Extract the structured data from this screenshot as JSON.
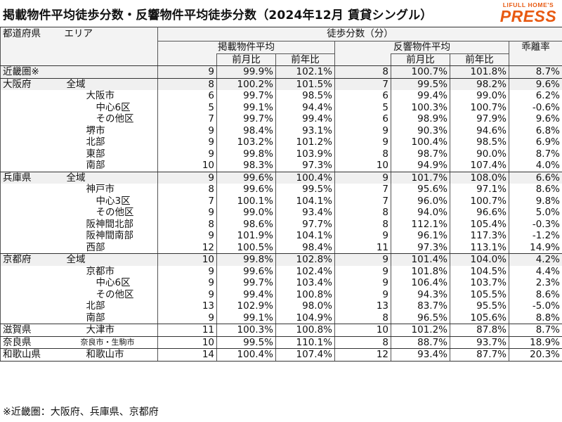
{
  "title": "掲載物件平均徒歩分数・反響物件平均徒歩分数（2024年12月 賃貸シングル）",
  "logo": {
    "top": "LIFULL HOME'S",
    "main": "PRESS"
  },
  "headers": {
    "region": "都道府県",
    "area": "エリア",
    "walk_minutes": "徒歩分数（分）",
    "listed_avg": "掲載物件平均",
    "response_avg": "反響物件平均",
    "mom": "前月比",
    "yoy": "前年比",
    "divergence": "乖離率"
  },
  "rows": [
    {
      "region": "近畿圏※",
      "area": "",
      "listed": "9",
      "listed_mom": "99.9%",
      "listed_yoy": "102.1%",
      "resp": "8",
      "resp_mom": "100.7%",
      "resp_yoy": "101.8%",
      "div": "8.7%"
    },
    {
      "region": "大阪府",
      "area": "全域",
      "listed": "8",
      "listed_mom": "100.2%",
      "listed_yoy": "101.5%",
      "resp": "7",
      "resp_mom": "99.5%",
      "resp_yoy": "98.2%",
      "div": "9.6%"
    },
    {
      "region": "",
      "area": "大阪市",
      "listed": "6",
      "listed_mom": "99.7%",
      "listed_yoy": "98.5%",
      "resp": "6",
      "resp_mom": "99.4%",
      "resp_yoy": "99.0%",
      "div": "6.2%"
    },
    {
      "region": "",
      "area": "中心6区",
      "listed": "5",
      "listed_mom": "99.1%",
      "listed_yoy": "94.4%",
      "resp": "5",
      "resp_mom": "100.3%",
      "resp_yoy": "100.7%",
      "div": "-0.6%"
    },
    {
      "region": "",
      "area": "その他区",
      "listed": "7",
      "listed_mom": "99.7%",
      "listed_yoy": "99.4%",
      "resp": "6",
      "resp_mom": "98.9%",
      "resp_yoy": "97.9%",
      "div": "9.6%"
    },
    {
      "region": "",
      "area": "堺市",
      "listed": "9",
      "listed_mom": "98.4%",
      "listed_yoy": "93.1%",
      "resp": "9",
      "resp_mom": "90.3%",
      "resp_yoy": "94.6%",
      "div": "6.8%"
    },
    {
      "region": "",
      "area": "北部",
      "listed": "9",
      "listed_mom": "103.2%",
      "listed_yoy": "101.2%",
      "resp": "9",
      "resp_mom": "100.4%",
      "resp_yoy": "98.5%",
      "div": "6.9%"
    },
    {
      "region": "",
      "area": "東部",
      "listed": "9",
      "listed_mom": "99.8%",
      "listed_yoy": "103.9%",
      "resp": "8",
      "resp_mom": "98.7%",
      "resp_yoy": "90.0%",
      "div": "8.7%"
    },
    {
      "region": "",
      "area": "南部",
      "listed": "10",
      "listed_mom": "98.3%",
      "listed_yoy": "97.3%",
      "resp": "10",
      "resp_mom": "94.9%",
      "resp_yoy": "107.4%",
      "div": "4.0%"
    },
    {
      "region": "兵庫県",
      "area": "全域",
      "listed": "9",
      "listed_mom": "99.6%",
      "listed_yoy": "100.4%",
      "resp": "9",
      "resp_mom": "101.7%",
      "resp_yoy": "108.0%",
      "div": "6.6%"
    },
    {
      "region": "",
      "area": "神戸市",
      "listed": "8",
      "listed_mom": "99.6%",
      "listed_yoy": "99.5%",
      "resp": "7",
      "resp_mom": "95.6%",
      "resp_yoy": "97.1%",
      "div": "8.6%"
    },
    {
      "region": "",
      "area": "中心3区",
      "listed": "7",
      "listed_mom": "100.1%",
      "listed_yoy": "104.1%",
      "resp": "7",
      "resp_mom": "96.0%",
      "resp_yoy": "100.7%",
      "div": "9.8%"
    },
    {
      "region": "",
      "area": "その他区",
      "listed": "9",
      "listed_mom": "99.0%",
      "listed_yoy": "93.4%",
      "resp": "8",
      "resp_mom": "94.0%",
      "resp_yoy": "96.6%",
      "div": "5.0%"
    },
    {
      "region": "",
      "area": "阪神間北部",
      "listed": "8",
      "listed_mom": "98.6%",
      "listed_yoy": "97.7%",
      "resp": "8",
      "resp_mom": "112.1%",
      "resp_yoy": "105.4%",
      "div": "-0.3%"
    },
    {
      "region": "",
      "area": "阪神間南部",
      "listed": "9",
      "listed_mom": "101.9%",
      "listed_yoy": "104.1%",
      "resp": "9",
      "resp_mom": "96.1%",
      "resp_yoy": "117.3%",
      "div": "-1.2%"
    },
    {
      "region": "",
      "area": "西部",
      "listed": "12",
      "listed_mom": "100.5%",
      "listed_yoy": "98.4%",
      "resp": "11",
      "resp_mom": "97.3%",
      "resp_yoy": "113.1%",
      "div": "14.9%"
    },
    {
      "region": "京都府",
      "area": "全域",
      "listed": "10",
      "listed_mom": "99.8%",
      "listed_yoy": "102.8%",
      "resp": "9",
      "resp_mom": "101.4%",
      "resp_yoy": "104.0%",
      "div": "4.2%"
    },
    {
      "region": "",
      "area": "京都市",
      "listed": "9",
      "listed_mom": "99.6%",
      "listed_yoy": "102.4%",
      "resp": "9",
      "resp_mom": "101.8%",
      "resp_yoy": "104.5%",
      "div": "4.4%"
    },
    {
      "region": "",
      "area": "中心6区",
      "listed": "9",
      "listed_mom": "99.7%",
      "listed_yoy": "103.4%",
      "resp": "9",
      "resp_mom": "106.4%",
      "resp_yoy": "103.7%",
      "div": "2.3%"
    },
    {
      "region": "",
      "area": "その他区",
      "listed": "9",
      "listed_mom": "99.4%",
      "listed_yoy": "100.8%",
      "resp": "9",
      "resp_mom": "94.3%",
      "resp_yoy": "105.5%",
      "div": "8.6%"
    },
    {
      "region": "",
      "area": "北部",
      "listed": "13",
      "listed_mom": "102.9%",
      "listed_yoy": "98.0%",
      "resp": "13",
      "resp_mom": "83.7%",
      "resp_yoy": "95.5%",
      "div": "-5.0%"
    },
    {
      "region": "",
      "area": "南部",
      "listed": "9",
      "listed_mom": "99.1%",
      "listed_yoy": "104.9%",
      "resp": "8",
      "resp_mom": "96.5%",
      "resp_yoy": "105.6%",
      "div": "8.8%"
    },
    {
      "region": "滋賀県",
      "area": "大津市",
      "listed": "11",
      "listed_mom": "100.3%",
      "listed_yoy": "100.8%",
      "resp": "10",
      "resp_mom": "101.2%",
      "resp_yoy": "87.8%",
      "div": "8.7%"
    },
    {
      "region": "奈良県",
      "area": "奈良市・生駒市",
      "listed": "10",
      "listed_mom": "99.5%",
      "listed_yoy": "110.1%",
      "resp": "8",
      "resp_mom": "88.7%",
      "resp_yoy": "93.7%",
      "div": "18.9%"
    },
    {
      "region": "和歌山県",
      "area": "和歌山市",
      "listed": "14",
      "listed_mom": "100.4%",
      "listed_yoy": "107.4%",
      "resp": "12",
      "resp_mom": "93.4%",
      "resp_yoy": "87.7%",
      "div": "20.3%"
    }
  ],
  "footnote": "※近畿圏：大阪府、兵庫県、京都府"
}
